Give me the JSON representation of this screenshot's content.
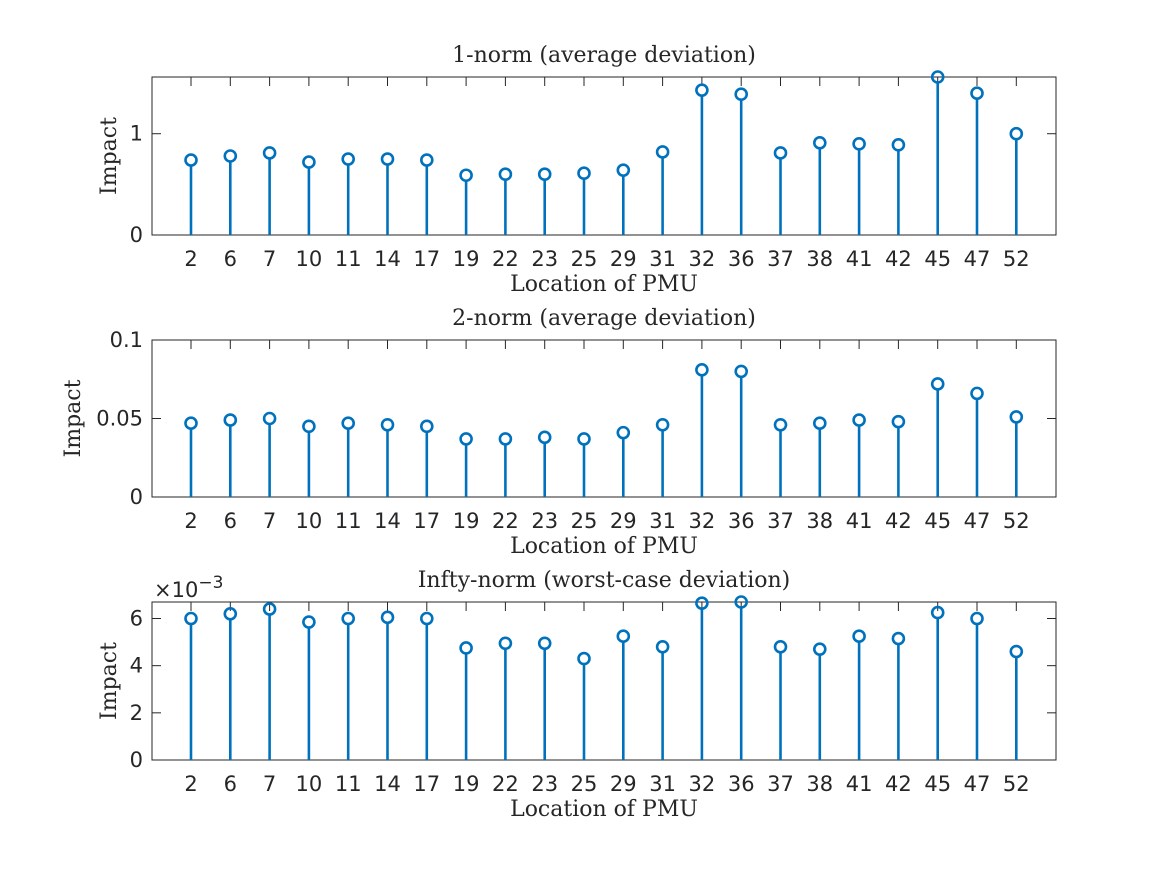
{
  "chart_data": [
    {
      "type": "stem",
      "title": "1-norm (average deviation)",
      "xlabel": "Location of PMU",
      "ylabel": "Impact",
      "categories": [
        "2",
        "6",
        "7",
        "10",
        "11",
        "14",
        "17",
        "19",
        "22",
        "23",
        "25",
        "29",
        "31",
        "32",
        "36",
        "37",
        "38",
        "41",
        "42",
        "45",
        "47",
        "52"
      ],
      "values": [
        0.74,
        0.78,
        0.81,
        0.72,
        0.75,
        0.75,
        0.74,
        0.59,
        0.6,
        0.6,
        0.61,
        0.64,
        0.82,
        1.43,
        1.39,
        0.81,
        0.91,
        0.9,
        0.89,
        1.56,
        1.4,
        1.0
      ],
      "ylim": [
        0,
        1.56
      ],
      "yticks": [
        0,
        1
      ],
      "ytick_labels": [
        "0",
        "1"
      ],
      "exponent_label": "",
      "color": "#0072BD",
      "grid": false
    },
    {
      "type": "stem",
      "title": "2-norm (average deviation)",
      "xlabel": "Location of PMU",
      "ylabel": "Impact",
      "categories": [
        "2",
        "6",
        "7",
        "10",
        "11",
        "14",
        "17",
        "19",
        "22",
        "23",
        "25",
        "29",
        "31",
        "32",
        "36",
        "37",
        "38",
        "41",
        "42",
        "45",
        "47",
        "52"
      ],
      "values": [
        0.047,
        0.049,
        0.05,
        0.045,
        0.047,
        0.046,
        0.045,
        0.037,
        0.037,
        0.038,
        0.037,
        0.041,
        0.046,
        0.081,
        0.08,
        0.046,
        0.047,
        0.049,
        0.048,
        0.072,
        0.066,
        0.051
      ],
      "ylim": [
        0,
        0.1
      ],
      "yticks": [
        0,
        0.05,
        0.1
      ],
      "ytick_labels": [
        "0",
        "0.05",
        "0.1"
      ],
      "exponent_label": "",
      "color": "#0072BD",
      "grid": false
    },
    {
      "type": "stem",
      "title": "Infty-norm (worst-case deviation)",
      "xlabel": "Location of PMU",
      "ylabel": "Impact",
      "categories": [
        "2",
        "6",
        "7",
        "10",
        "11",
        "14",
        "17",
        "19",
        "22",
        "23",
        "25",
        "29",
        "31",
        "32",
        "36",
        "37",
        "38",
        "41",
        "42",
        "45",
        "47",
        "52"
      ],
      "values": [
        0.006,
        0.0062,
        0.0064,
        0.00585,
        0.006,
        0.00605,
        0.006,
        0.00475,
        0.00495,
        0.00495,
        0.0043,
        0.00525,
        0.0048,
        0.00665,
        0.0067,
        0.0048,
        0.0047,
        0.00525,
        0.00515,
        0.00625,
        0.006,
        0.0046
      ],
      "ylim": [
        0,
        0.0067
      ],
      "yticks": [
        0,
        0.002,
        0.004,
        0.006
      ],
      "ytick_labels": [
        "0",
        "2",
        "4",
        "6"
      ],
      "exponent_label": "×10",
      "exponent_power": "−3",
      "color": "#0072BD",
      "grid": false
    }
  ]
}
